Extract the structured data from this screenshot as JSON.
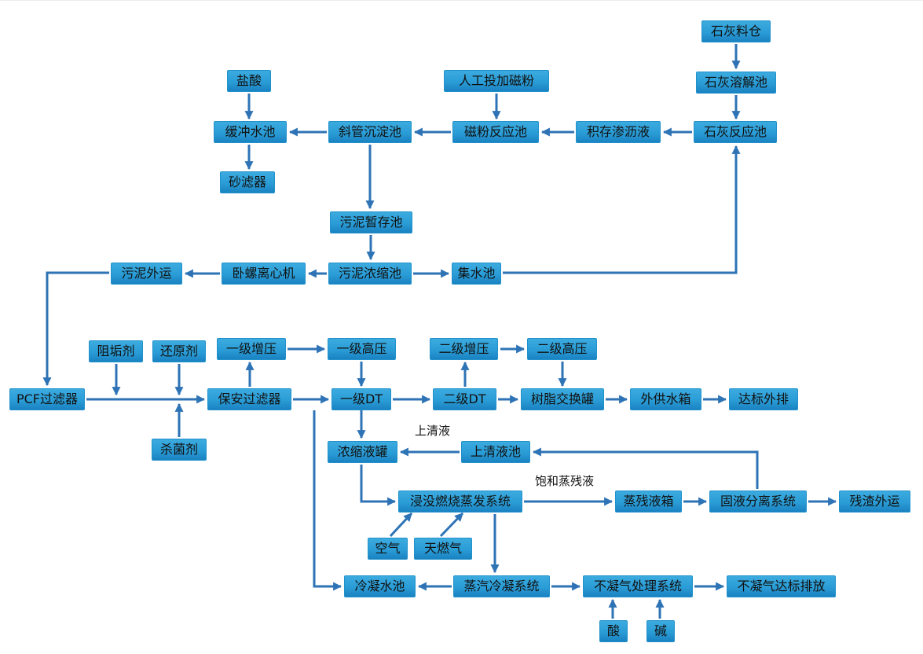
{
  "colors": {
    "node_fill_top": "#3cabdf",
    "node_fill_bottom": "#1a82c1",
    "node_border": "#2191cb",
    "arrow": "#2e73b5",
    "text": "#111111",
    "background": "#ffffff"
  },
  "diagram": {
    "nodes": [
      {
        "id": "lime-silo",
        "label": "石灰料仓"
      },
      {
        "id": "lime-dissolve",
        "label": "石灰溶解池"
      },
      {
        "id": "lime-react",
        "label": "石灰反应池"
      },
      {
        "id": "manual-magnetic",
        "label": "人工投加磁粉"
      },
      {
        "id": "magnetic-react",
        "label": "磁粉反应池"
      },
      {
        "id": "stored-leachate",
        "label": "积存渗沥液"
      },
      {
        "id": "hcl",
        "label": "盐酸"
      },
      {
        "id": "buffer-pool",
        "label": "缓冲水池"
      },
      {
        "id": "inclined-settler",
        "label": "斜管沉淀池"
      },
      {
        "id": "sand-filter",
        "label": "砂滤器"
      },
      {
        "id": "sludge-temp",
        "label": "污泥暂存池"
      },
      {
        "id": "sludge-thicken",
        "label": "污泥浓缩池"
      },
      {
        "id": "collect-pool",
        "label": "集水池"
      },
      {
        "id": "decanter",
        "label": "卧螺离心机"
      },
      {
        "id": "sludge-out",
        "label": "污泥外运"
      },
      {
        "id": "antiscalant",
        "label": "阻垢剂"
      },
      {
        "id": "reductant",
        "label": "还原剂"
      },
      {
        "id": "biocide",
        "label": "杀菌剂"
      },
      {
        "id": "booster1",
        "label": "一级增压"
      },
      {
        "id": "hp1",
        "label": "一级高压"
      },
      {
        "id": "booster2",
        "label": "二级增压"
      },
      {
        "id": "hp2",
        "label": "二级高压"
      },
      {
        "id": "pcf-filter",
        "label": "PCF过滤器"
      },
      {
        "id": "security-filter",
        "label": "保安过滤器"
      },
      {
        "id": "dt1",
        "label": "一级DT"
      },
      {
        "id": "dt2",
        "label": "二级DT"
      },
      {
        "id": "resin-tank",
        "label": "树脂交换罐"
      },
      {
        "id": "supply-tank",
        "label": "外供水箱"
      },
      {
        "id": "discharge",
        "label": "达标外排"
      },
      {
        "id": "concentrate-tank",
        "label": "浓缩液罐"
      },
      {
        "id": "supernatant-pool",
        "label": "上清液池"
      },
      {
        "id": "sie-system",
        "label": "浸没燃烧蒸发系统"
      },
      {
        "id": "air",
        "label": "空气"
      },
      {
        "id": "natural-gas",
        "label": "天燃气"
      },
      {
        "id": "residue-tank",
        "label": "蒸残液箱"
      },
      {
        "id": "solid-liquid-sep",
        "label": "固液分离系统"
      },
      {
        "id": "residue-out",
        "label": "残渣外运"
      },
      {
        "id": "condensate-pool",
        "label": "冷凝水池"
      },
      {
        "id": "steam-condense",
        "label": "蒸汽冷凝系统"
      },
      {
        "id": "ncg-treat",
        "label": "不凝气处理系统"
      },
      {
        "id": "ncg-discharge",
        "label": "不凝气达标排放"
      },
      {
        "id": "acid",
        "label": "酸"
      },
      {
        "id": "alkali",
        "label": "碱"
      }
    ],
    "edges": [
      {
        "from": "lime-silo",
        "to": "lime-dissolve"
      },
      {
        "from": "lime-dissolve",
        "to": "lime-react"
      },
      {
        "from": "lime-react",
        "to": "stored-leachate"
      },
      {
        "from": "stored-leachate",
        "to": "magnetic-react"
      },
      {
        "from": "manual-magnetic",
        "to": "magnetic-react"
      },
      {
        "from": "magnetic-react",
        "to": "inclined-settler"
      },
      {
        "from": "inclined-settler",
        "to": "buffer-pool"
      },
      {
        "from": "hcl",
        "to": "buffer-pool"
      },
      {
        "from": "buffer-pool",
        "to": "sand-filter"
      },
      {
        "from": "inclined-settler",
        "to": "sludge-temp"
      },
      {
        "from": "sludge-temp",
        "to": "sludge-thicken"
      },
      {
        "from": "sludge-thicken",
        "to": "decanter"
      },
      {
        "from": "decanter",
        "to": "sludge-out"
      },
      {
        "from": "sludge-thicken",
        "to": "collect-pool"
      },
      {
        "from": "collect-pool",
        "to": "lime-react"
      },
      {
        "from": "sludge-out",
        "to": "pcf-filter"
      },
      {
        "from": "pcf-filter",
        "to": "security-filter"
      },
      {
        "from": "antiscalant",
        "to": "security-filter"
      },
      {
        "from": "reductant",
        "to": "security-filter"
      },
      {
        "from": "biocide",
        "to": "security-filter"
      },
      {
        "from": "security-filter",
        "to": "booster1"
      },
      {
        "from": "booster1",
        "to": "hp1"
      },
      {
        "from": "hp1",
        "to": "dt1"
      },
      {
        "from": "dt2",
        "to": "booster2"
      },
      {
        "from": "booster2",
        "to": "hp2"
      },
      {
        "from": "hp2",
        "to": "resin-tank"
      },
      {
        "from": "security-filter",
        "to": "dt1"
      },
      {
        "from": "dt1",
        "to": "dt2"
      },
      {
        "from": "dt2",
        "to": "resin-tank"
      },
      {
        "from": "resin-tank",
        "to": "supply-tank"
      },
      {
        "from": "supply-tank",
        "to": "discharge"
      },
      {
        "from": "dt1",
        "to": "concentrate-tank"
      },
      {
        "from": "supernatant-pool",
        "to": "concentrate-tank",
        "label": "上清液"
      },
      {
        "from": "solid-liquid-sep",
        "to": "supernatant-pool"
      },
      {
        "from": "concentrate-tank",
        "to": "sie-system"
      },
      {
        "from": "air",
        "to": "sie-system"
      },
      {
        "from": "natural-gas",
        "to": "sie-system"
      },
      {
        "from": "sie-system",
        "to": "residue-tank",
        "label": "饱和蒸残液"
      },
      {
        "from": "residue-tank",
        "to": "solid-liquid-sep"
      },
      {
        "from": "solid-liquid-sep",
        "to": "residue-out"
      },
      {
        "from": "sie-system",
        "to": "steam-condense"
      },
      {
        "from": "steam-condense",
        "to": "condensate-pool"
      },
      {
        "from": "security-filter",
        "to": "condensate-pool"
      },
      {
        "from": "steam-condense",
        "to": "ncg-treat"
      },
      {
        "from": "ncg-treat",
        "to": "ncg-discharge"
      },
      {
        "from": "acid",
        "to": "ncg-treat"
      },
      {
        "from": "alkali",
        "to": "ncg-treat"
      }
    ]
  }
}
